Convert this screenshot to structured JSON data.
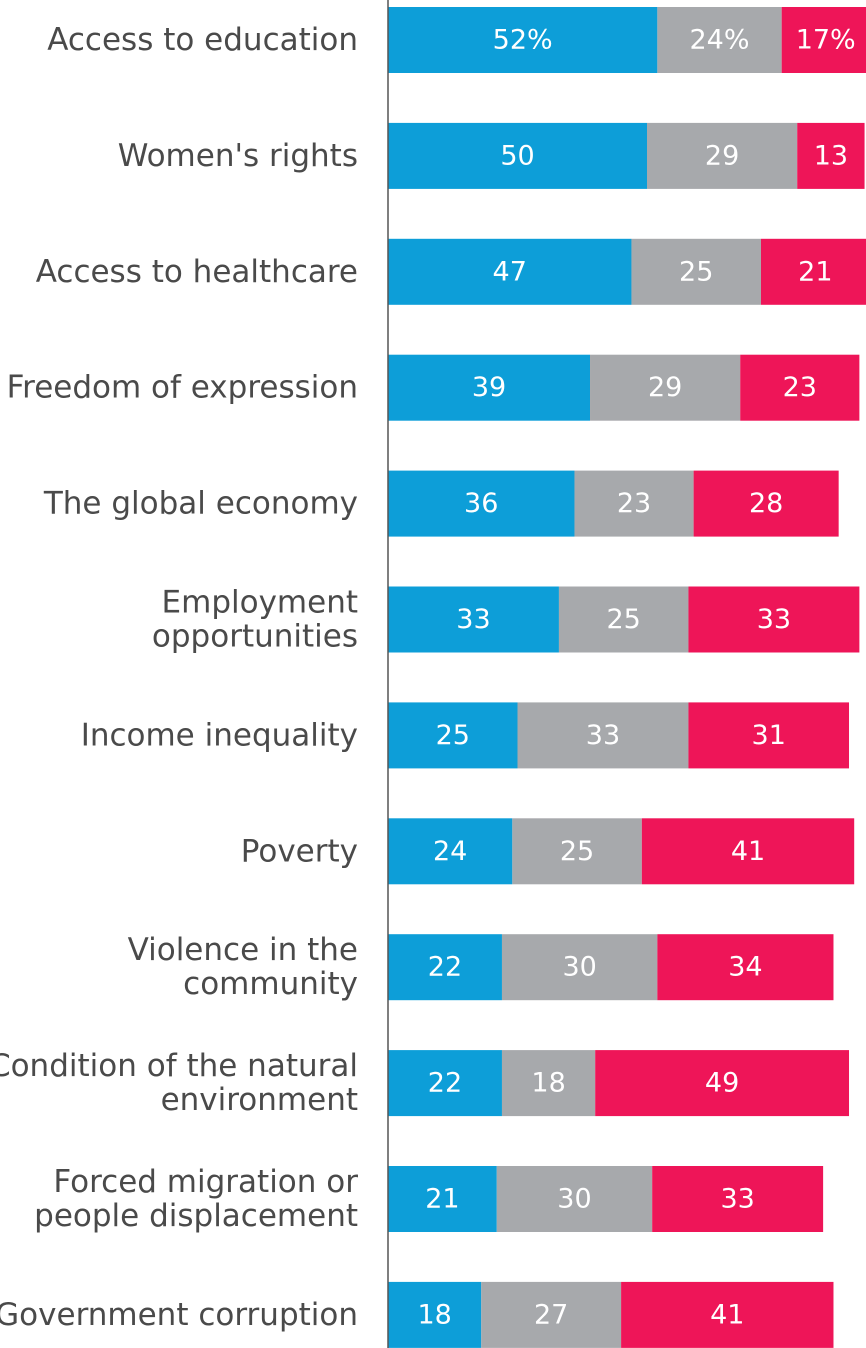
{
  "chart_data": {
    "type": "bar",
    "orientation": "horizontal",
    "stacked": true,
    "categories": [
      [
        "Access to education"
      ],
      [
        "Women's rights"
      ],
      [
        "Access to healthcare"
      ],
      [
        "Freedom of expression"
      ],
      [
        "The global economy"
      ],
      [
        "Employment",
        "opportunities"
      ],
      [
        "Income inequality"
      ],
      [
        "Poverty"
      ],
      [
        "Violence in the",
        "community"
      ],
      [
        "Condition of the natural",
        "environment"
      ],
      [
        "Forced migration or",
        "people displacement"
      ],
      [
        "Government corruption"
      ]
    ],
    "series": [
      {
        "color": "#0d9ed8",
        "values": [
          52,
          50,
          47,
          39,
          36,
          33,
          25,
          24,
          22,
          22,
          21,
          18
        ],
        "labels": [
          "52%",
          "50",
          "47",
          "39",
          "36",
          "33",
          "25",
          "24",
          "22",
          "22",
          "21",
          "18"
        ]
      },
      {
        "color": "#a7a9ac",
        "values": [
          24,
          29,
          25,
          29,
          23,
          25,
          33,
          25,
          30,
          18,
          30,
          27
        ],
        "labels": [
          "24%",
          "29",
          "25",
          "29",
          "23",
          "25",
          "33",
          "25",
          "30",
          "18",
          "30",
          "27"
        ]
      },
      {
        "color": "#ee1558",
        "values": [
          17,
          13,
          21,
          23,
          28,
          33,
          31,
          41,
          34,
          49,
          33,
          41
        ],
        "labels": [
          "17%",
          "13",
          "21",
          "23",
          "28",
          "33",
          "31",
          "41",
          "34",
          "49",
          "33",
          "41"
        ]
      }
    ],
    "xlim": [
      0,
      93
    ],
    "grid": false,
    "legend": "none",
    "axis_color": "#555555"
  }
}
